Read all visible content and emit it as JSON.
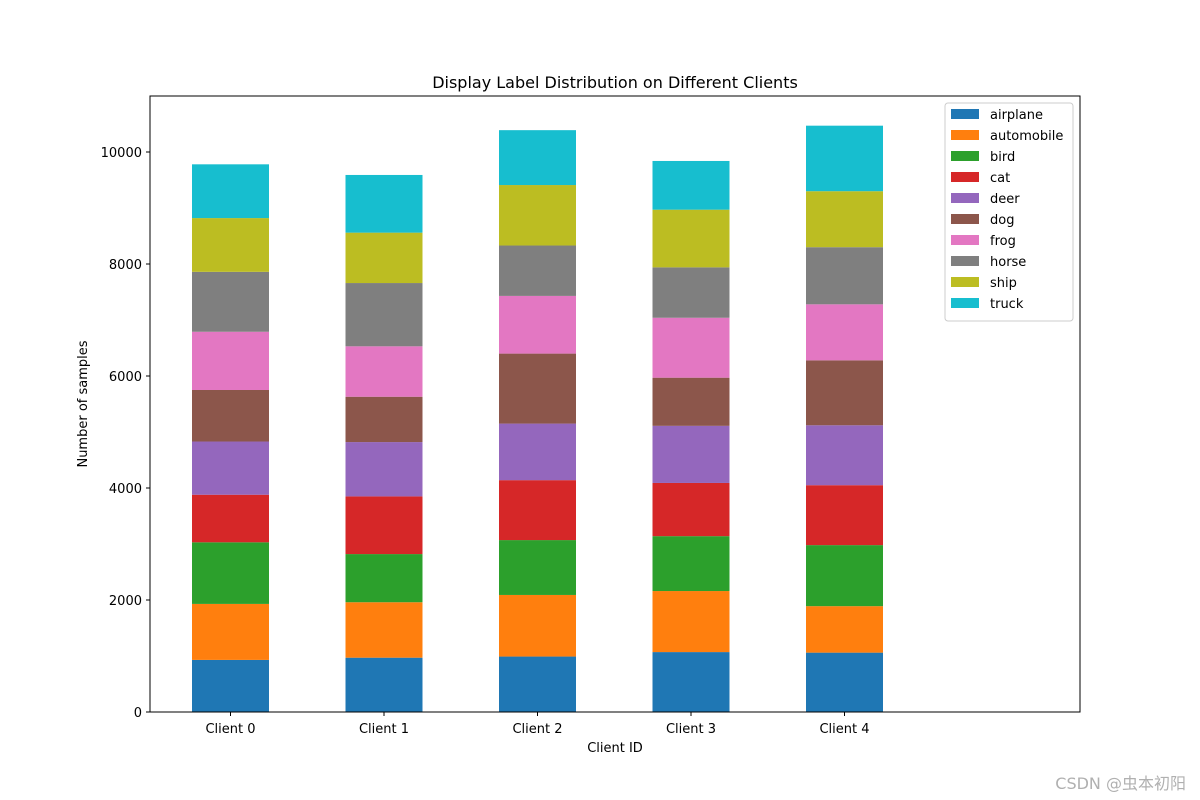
{
  "chart_data": {
    "type": "bar",
    "stacked": true,
    "title": "Display Label Distribution on Different Clients",
    "xlabel": "Client ID",
    "ylabel": "Number of samples",
    "ylim": [
      0,
      11000
    ],
    "yticks": [
      0,
      2000,
      4000,
      6000,
      8000,
      10000
    ],
    "grid": false,
    "legend_position": "top-right",
    "categories": [
      "Client 0",
      "Client 1",
      "Client 2",
      "Client 3",
      "Client 4"
    ],
    "series": [
      {
        "name": "airplane",
        "color": "#1f77b4",
        "values": [
          930,
          970,
          990,
          1070,
          1060
        ]
      },
      {
        "name": "automobile",
        "color": "#ff7f0e",
        "values": [
          1000,
          990,
          1100,
          1090,
          830
        ]
      },
      {
        "name": "bird",
        "color": "#2ca02c",
        "values": [
          1100,
          860,
          980,
          980,
          1090
        ]
      },
      {
        "name": "cat",
        "color": "#d62728",
        "values": [
          850,
          1030,
          1070,
          950,
          1070
        ]
      },
      {
        "name": "deer",
        "color": "#9467bd",
        "values": [
          950,
          970,
          1010,
          1020,
          1070
        ]
      },
      {
        "name": "dog",
        "color": "#8c564b",
        "values": [
          920,
          810,
          1250,
          860,
          1160
        ]
      },
      {
        "name": "frog",
        "color": "#e377c2",
        "values": [
          1040,
          900,
          1030,
          1070,
          1000
        ]
      },
      {
        "name": "horse",
        "color": "#7f7f7f",
        "values": [
          1070,
          1130,
          900,
          900,
          1020
        ]
      },
      {
        "name": "ship",
        "color": "#bcbd22",
        "values": [
          960,
          900,
          1080,
          1030,
          1000
        ]
      },
      {
        "name": "truck",
        "color": "#17becf",
        "values": [
          960,
          1030,
          980,
          870,
          1170
        ]
      }
    ]
  },
  "watermark": "CSDN @虫本初阳"
}
